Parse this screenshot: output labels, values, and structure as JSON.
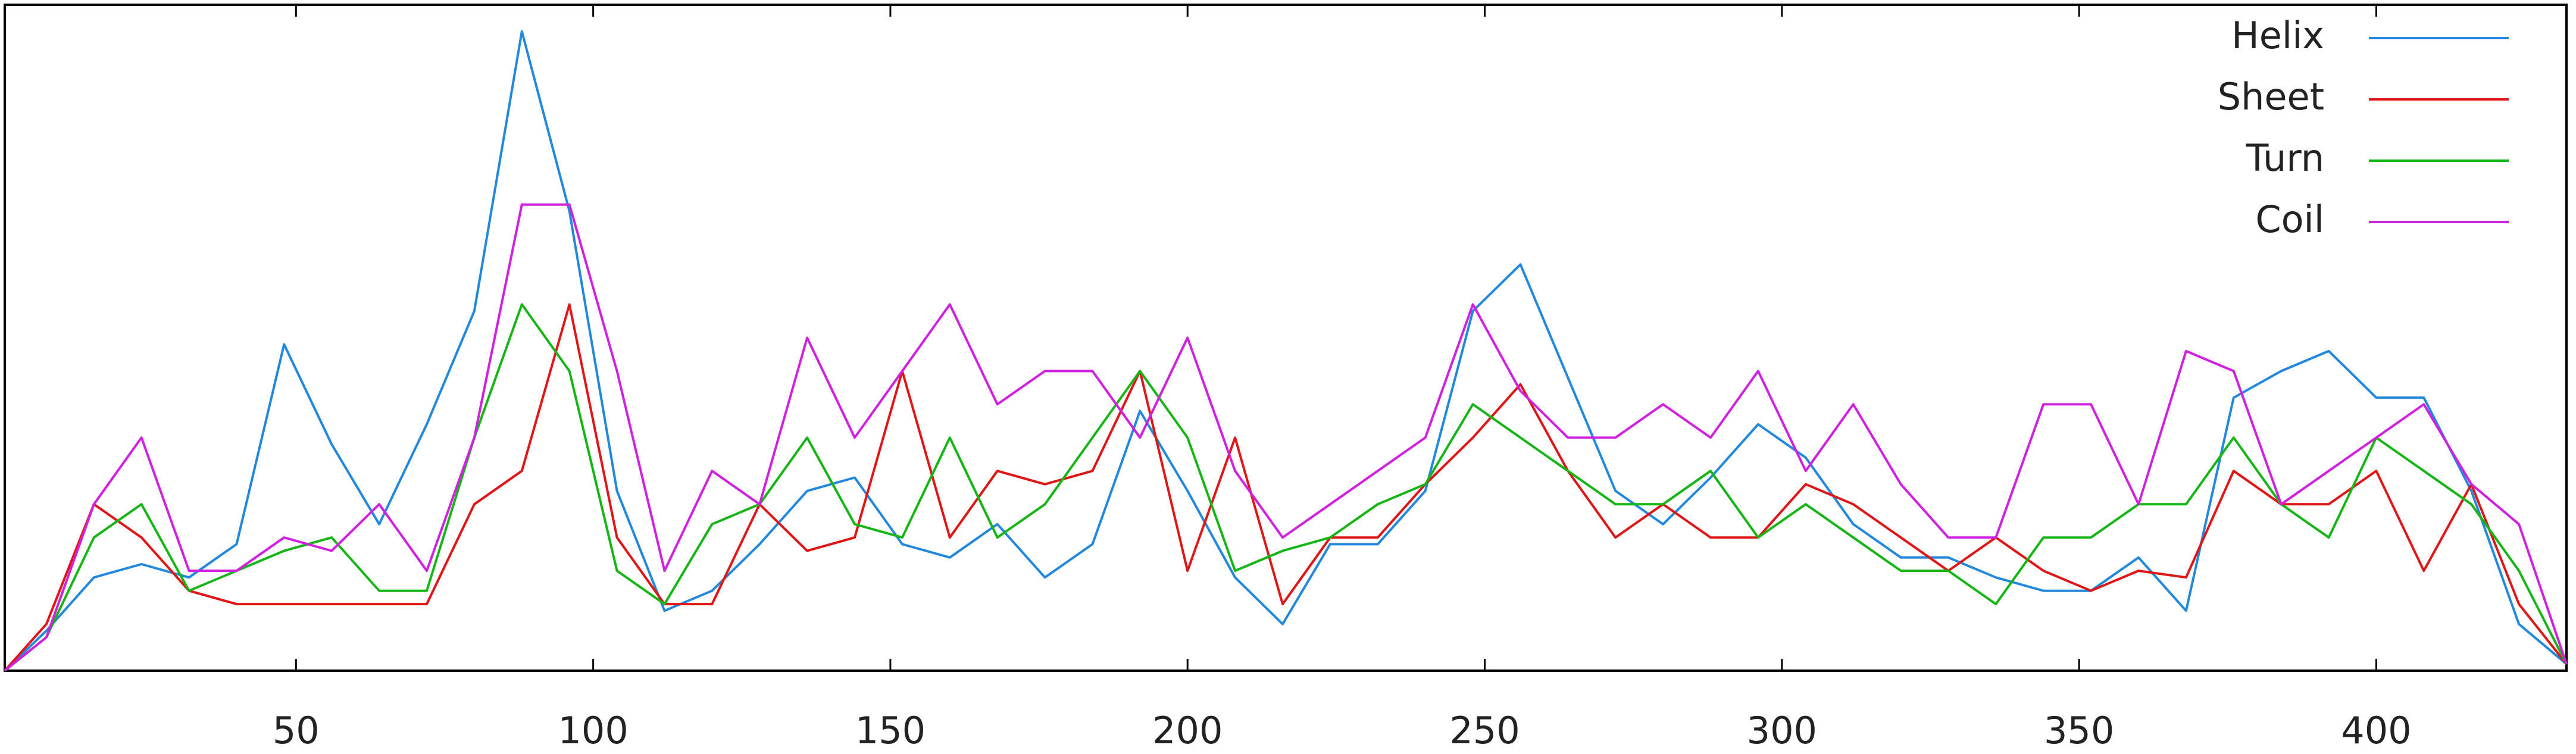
{
  "chart_data": {
    "type": "line",
    "x": [
      1,
      8,
      16,
      24,
      32,
      40,
      48,
      56,
      64,
      72,
      80,
      88,
      96,
      104,
      112,
      120,
      128,
      136,
      144,
      152,
      160,
      168,
      176,
      184,
      192,
      200,
      208,
      216,
      224,
      232,
      240,
      248,
      256,
      264,
      272,
      280,
      288,
      296,
      304,
      312,
      320,
      328,
      336,
      344,
      352,
      360,
      368,
      376,
      384,
      392,
      400,
      408,
      416,
      424,
      432
    ],
    "series": [
      {
        "name": "Helix",
        "color": "#2288dd",
        "values": [
          0,
          0.06,
          0.14,
          0.16,
          0.14,
          0.19,
          0.49,
          0.34,
          0.22,
          0.37,
          0.54,
          0.96,
          0.69,
          0.27,
          0.09,
          0.12,
          0.19,
          0.27,
          0.29,
          0.19,
          0.17,
          0.22,
          0.14,
          0.19,
          0.39,
          0.27,
          0.14,
          0.07,
          0.19,
          0.19,
          0.27,
          0.54,
          0.61,
          0.44,
          0.27,
          0.22,
          0.29,
          0.37,
          0.32,
          0.22,
          0.17,
          0.17,
          0.14,
          0.12,
          0.12,
          0.17,
          0.09,
          0.41,
          0.45,
          0.48,
          0.41,
          0.41,
          0.27,
          0.07,
          0.01
        ]
      },
      {
        "name": "Sheet",
        "color": "#e01515",
        "values": [
          0,
          0.07,
          0.25,
          0.2,
          0.12,
          0.1,
          0.1,
          0.1,
          0.1,
          0.1,
          0.25,
          0.3,
          0.55,
          0.2,
          0.1,
          0.1,
          0.25,
          0.18,
          0.2,
          0.45,
          0.2,
          0.3,
          0.28,
          0.3,
          0.45,
          0.15,
          0.35,
          0.1,
          0.2,
          0.2,
          0.28,
          0.35,
          0.43,
          0.3,
          0.2,
          0.25,
          0.2,
          0.2,
          0.28,
          0.25,
          0.2,
          0.15,
          0.2,
          0.15,
          0.12,
          0.15,
          0.14,
          0.3,
          0.25,
          0.25,
          0.3,
          0.15,
          0.28,
          0.1,
          0.01
        ]
      },
      {
        "name": "Turn",
        "color": "#15b515",
        "values": [
          0,
          0.05,
          0.2,
          0.25,
          0.12,
          0.15,
          0.18,
          0.2,
          0.12,
          0.12,
          0.35,
          0.55,
          0.45,
          0.15,
          0.1,
          0.22,
          0.25,
          0.35,
          0.22,
          0.2,
          0.35,
          0.2,
          0.25,
          0.35,
          0.45,
          0.35,
          0.15,
          0.18,
          0.2,
          0.25,
          0.28,
          0.4,
          0.35,
          0.3,
          0.25,
          0.25,
          0.3,
          0.2,
          0.25,
          0.2,
          0.15,
          0.15,
          0.1,
          0.2,
          0.2,
          0.25,
          0.25,
          0.35,
          0.25,
          0.2,
          0.35,
          0.3,
          0.25,
          0.15,
          0.01
        ]
      },
      {
        "name": "Coil",
        "color": "#d020e0",
        "values": [
          0,
          0.05,
          0.25,
          0.35,
          0.15,
          0.15,
          0.2,
          0.18,
          0.25,
          0.15,
          0.35,
          0.7,
          0.7,
          0.45,
          0.15,
          0.3,
          0.25,
          0.5,
          0.35,
          0.45,
          0.55,
          0.4,
          0.45,
          0.45,
          0.35,
          0.5,
          0.3,
          0.2,
          0.25,
          0.3,
          0.35,
          0.55,
          0.42,
          0.35,
          0.35,
          0.4,
          0.35,
          0.45,
          0.3,
          0.4,
          0.28,
          0.2,
          0.2,
          0.4,
          0.4,
          0.25,
          0.48,
          0.45,
          0.25,
          0.3,
          0.35,
          0.4,
          0.28,
          0.22,
          0.01
        ]
      }
    ],
    "xlim": [
      1,
      432
    ],
    "ylim": [
      0,
      1
    ],
    "xticks": [
      50,
      100,
      150,
      200,
      250,
      300,
      350,
      400
    ],
    "legend": "top-right"
  }
}
